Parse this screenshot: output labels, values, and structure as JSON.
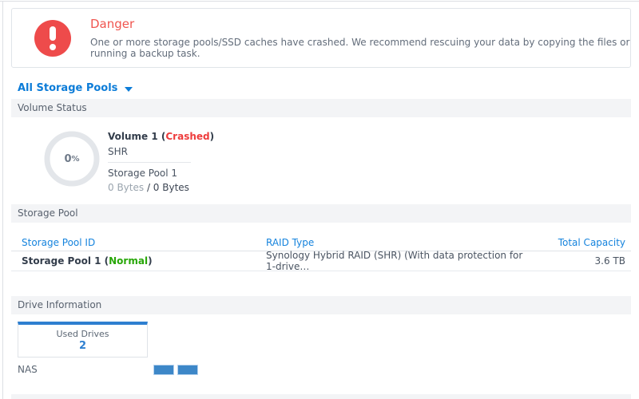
{
  "alert": {
    "title": "Danger",
    "message": "One or more storage pools/SSD caches have crashed. We recommend rescuing your data by copying the files or running a backup task."
  },
  "pool_selector": {
    "label": "All Storage Pools"
  },
  "sections": {
    "volume_status": "Volume Status",
    "storage_pool": "Storage Pool",
    "drive_information": "Drive Information"
  },
  "volume": {
    "usage_value": "0",
    "usage_unit": "%",
    "title_prefix": "Volume 1 (",
    "status": "Crashed",
    "title_suffix": ")",
    "raid_type": "SHR",
    "pool_name": "Storage Pool 1",
    "used": "0 Bytes",
    "capacity_rest": " / 0 Bytes"
  },
  "pool_table": {
    "headers": {
      "id": "Storage Pool ID",
      "raid": "RAID Type",
      "capacity": "Total Capacity"
    },
    "rows": [
      {
        "id_prefix": "Storage Pool 1 (",
        "status": "Normal",
        "id_suffix": ")",
        "raid": "Synology Hybrid RAID (SHR) (With data protection for 1-drive…",
        "capacity": "3.6 TB"
      }
    ]
  },
  "drives": {
    "used_label": "Used Drives",
    "used_count": "2",
    "host_label": "NAS",
    "bars": 2
  },
  "colors": {
    "accent_blue": "#0c7cd8",
    "link_blue": "#1583dd",
    "danger_red": "#ee4b4b",
    "danger_title": "#f0554f",
    "crashed_red": "#ee3c3c",
    "success_green": "#28a708",
    "drive_bar_blue": "#3d87c8",
    "card_accent_blue": "#2e7fd0",
    "section_bar_bg": "#f3f4f6"
  }
}
